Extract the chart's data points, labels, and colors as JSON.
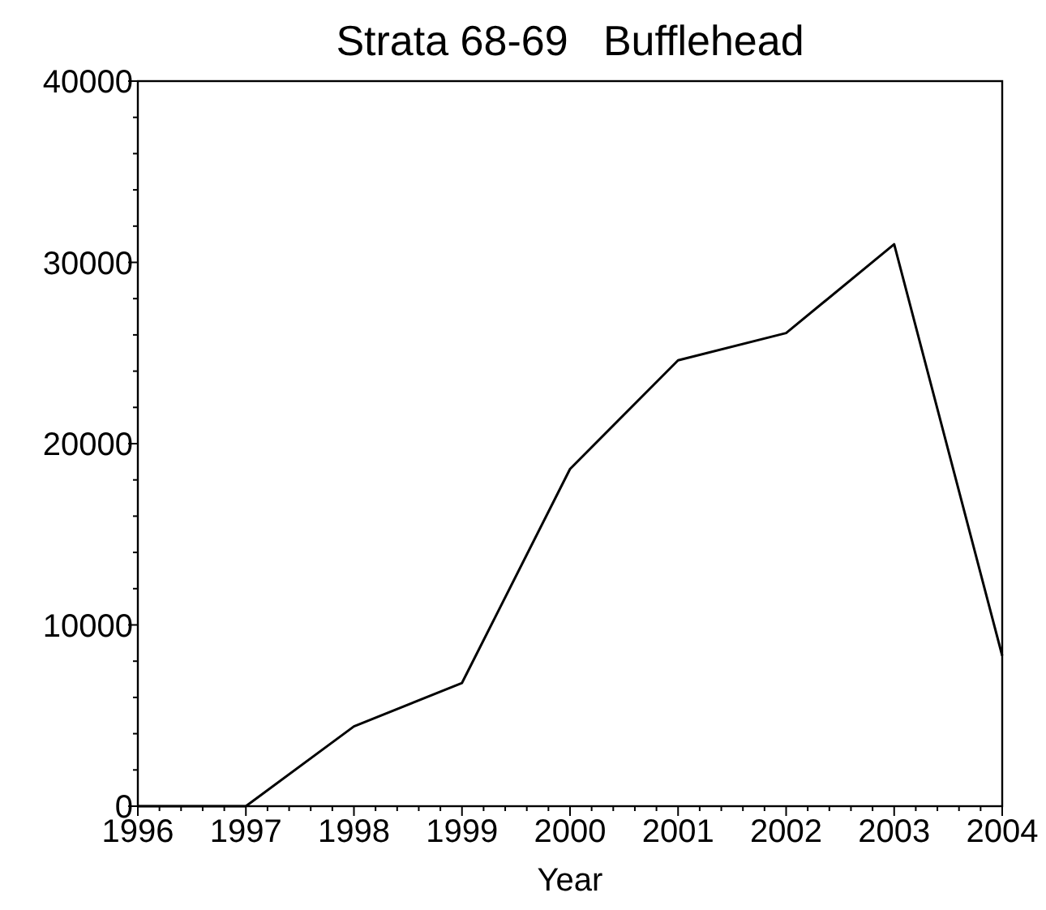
{
  "chart_data": {
    "type": "line",
    "title": "Strata 68-69   Bufflehead",
    "xlabel": "Year",
    "x": [
      1996,
      1997,
      1998,
      1999,
      2000,
      2001,
      2002,
      2003,
      2004
    ],
    "values": [
      0,
      0,
      4400,
      6800,
      18600,
      24600,
      26100,
      31000,
      8300
    ],
    "color": "#000000",
    "marker": "none",
    "line_style": "solid",
    "grid": false,
    "xlim": [
      1996,
      2004
    ],
    "ylim": [
      0,
      40000
    ],
    "xticks": [
      1996,
      1997,
      1998,
      1999,
      2000,
      2001,
      2002,
      2003,
      2004,
      {
        "value": 1996.2,
        "label": null
      },
      {
        "value": 1996.4,
        "label": null
      },
      {
        "value": 1996.6,
        "label": null
      },
      {
        "value": 1996.8,
        "label": null
      },
      {
        "value": 1997.2,
        "label": null
      },
      {
        "value": 1997.4,
        "label": null
      },
      {
        "value": 1997.6,
        "label": null
      },
      {
        "value": 1997.8,
        "label": null
      },
      {
        "value": 1998.2,
        "label": null
      },
      {
        "value": 1998.4,
        "label": null
      },
      {
        "value": 1998.6,
        "label": null
      },
      {
        "value": 1998.8,
        "label": null
      },
      {
        "value": 1999.2,
        "label": null
      },
      {
        "value": 1999.4,
        "label": null
      },
      {
        "value": 1999.6,
        "label": null
      },
      {
        "value": 1999.8,
        "label": null
      },
      {
        "value": 2000.2,
        "label": null
      },
      {
        "value": 2000.4,
        "label": null
      },
      {
        "value": 2000.6,
        "label": null
      },
      {
        "value": 2000.8,
        "label": null
      },
      {
        "value": 2001.2,
        "label": null
      },
      {
        "value": 2001.4,
        "label": null
      },
      {
        "value": 2001.6,
        "label": null
      },
      {
        "value": 2001.8,
        "label": null
      },
      {
        "value": 2002.2,
        "label": null
      },
      {
        "value": 2002.4,
        "label": null
      },
      {
        "value": 2002.6,
        "label": null
      },
      {
        "value": 2002.8,
        "label": null
      },
      {
        "value": 2003.2,
        "label": null
      },
      {
        "value": 2003.4,
        "label": null
      },
      {
        "value": 2003.6,
        "label": null
      },
      {
        "value": 2003.8,
        "label": null
      }
    ],
    "yticks": [
      0,
      10000,
      20000,
      30000,
      40000,
      {
        "value": 2000,
        "label": null
      },
      {
        "value": 4000,
        "label": null
      },
      {
        "value": 6000,
        "label": null
      },
      {
        "value": 8000,
        "label": null
      },
      {
        "value": 12000,
        "label": null
      },
      {
        "value": 14000,
        "label": null
      },
      {
        "value": 16000,
        "label": null
      },
      {
        "value": 18000,
        "label": null
      },
      {
        "value": 22000,
        "label": null
      },
      {
        "value": 24000,
        "label": null
      },
      {
        "value": 26000,
        "label": null
      },
      {
        "value": 28000,
        "label": null
      },
      {
        "value": 32000,
        "label": null
      },
      {
        "value": 34000,
        "label": null
      },
      {
        "value": 36000,
        "label": null
      },
      {
        "value": 38000,
        "label": null
      }
    ]
  }
}
